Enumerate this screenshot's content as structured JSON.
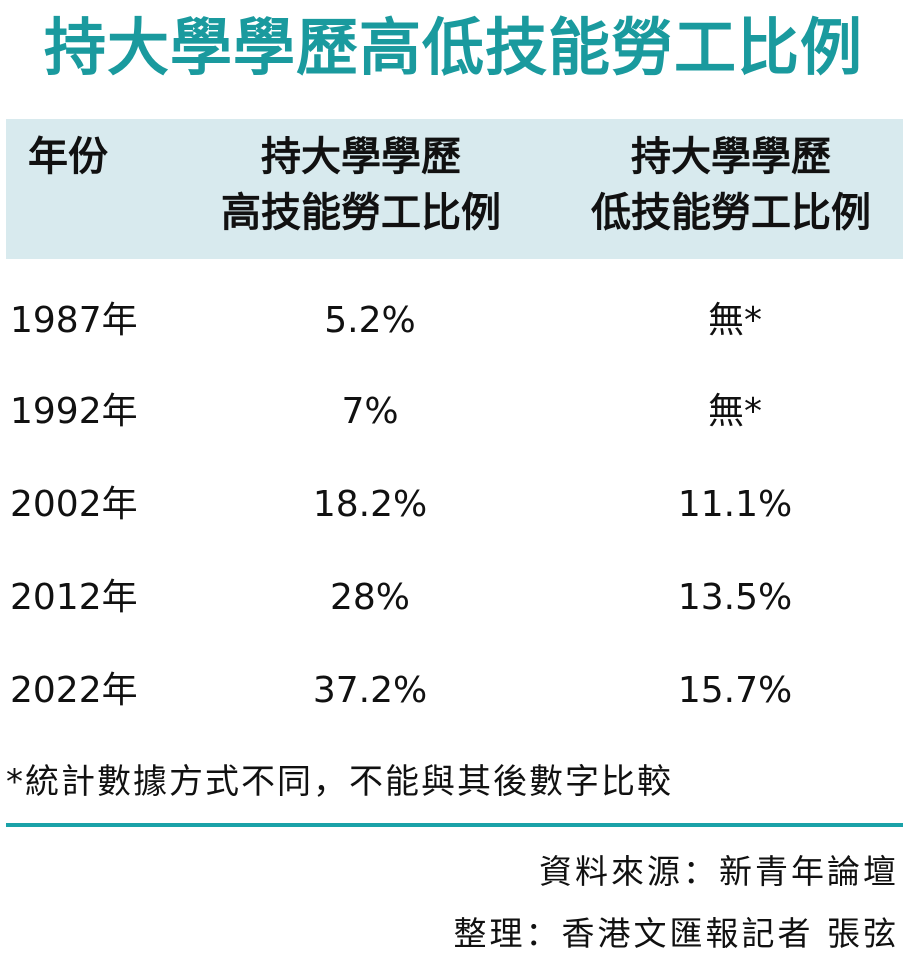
{
  "title": "持大學學歷高低技能勞工比例",
  "colors": {
    "title": "#1a9a9e",
    "header_bg": "#d8eaee",
    "rule": "#1aa2a8",
    "text": "#111111"
  },
  "header": {
    "year": "年份",
    "col1_line1": "持大學學歷",
    "col1_line2": "高技能勞工比例",
    "col2_line1": "持大學學歷",
    "col2_line2": "低技能勞工比例"
  },
  "rows": [
    {
      "year": "1987年",
      "high": "5.2%",
      "low": "無*"
    },
    {
      "year": "1992年",
      "high": "7%",
      "low": "無*"
    },
    {
      "year": "2002年",
      "high": "18.2%",
      "low": "11.1%"
    },
    {
      "year": "2012年",
      "high": "28%",
      "low": "13.5%"
    },
    {
      "year": "2022年",
      "high": "37.2%",
      "low": "15.7%"
    }
  ],
  "note": "*統計數據方式不同，不能與其後數字比較",
  "source": "資料來源：新青年論壇",
  "editor": "整理：香港文匯報記者 張弦",
  "chart_data": {
    "type": "table",
    "title": "持大學學歷高低技能勞工比例",
    "columns": [
      "年份",
      "持大學學歷高技能勞工比例",
      "持大學學歷低技能勞工比例"
    ],
    "x": [
      "1987年",
      "1992年",
      "2002年",
      "2012年",
      "2022年"
    ],
    "series": [
      {
        "name": "持大學學歷高技能勞工比例",
        "values": [
          5.2,
          7,
          18.2,
          28,
          37.2
        ]
      },
      {
        "name": "持大學學歷低技能勞工比例",
        "values": [
          null,
          null,
          11.1,
          13.5,
          15.7
        ]
      }
    ]
  }
}
